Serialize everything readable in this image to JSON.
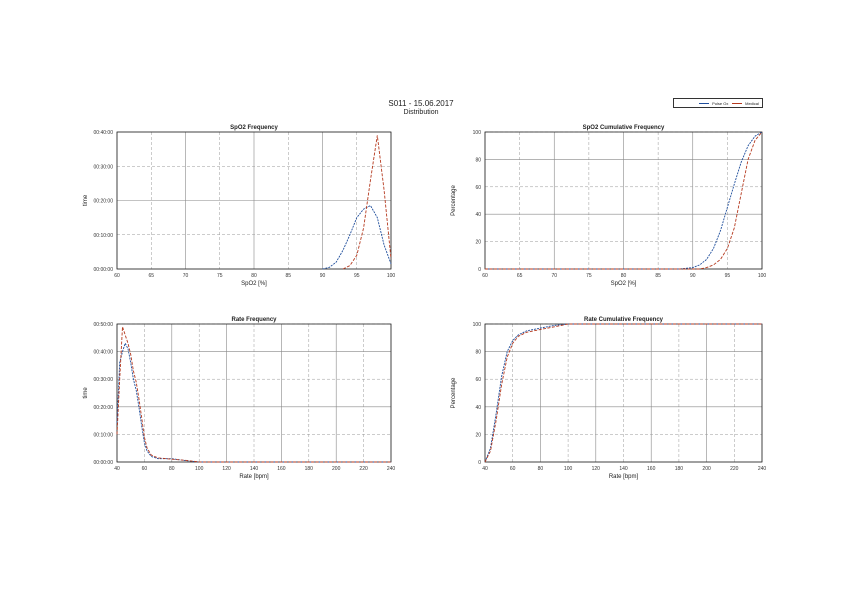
{
  "header": {
    "title": "S011 - 15.06.2017",
    "subtitle": "Distribution"
  },
  "legend": {
    "entries": [
      {
        "label": "Pulse Ox",
        "color": "#1f4e9c"
      },
      {
        "label": "Medical",
        "color": "#b5391e"
      }
    ]
  },
  "chart_data": [
    {
      "id": "spo2-frequency",
      "type": "line",
      "title": "SpO2 Frequency",
      "xlabel": "SpO2 [%]",
      "ylabel": "time",
      "xlim": [
        60,
        100
      ],
      "ylim": [
        0,
        4
      ],
      "xticks": [
        60,
        65,
        70,
        75,
        80,
        85,
        90,
        95,
        100
      ],
      "yticks": [
        0,
        1,
        2,
        3,
        4
      ],
      "ytick_labels": [
        "00:00:00",
        "00:10:00",
        "00:20:00",
        "00:30:00",
        "00:40:00"
      ],
      "series": [
        {
          "color": "#1f4e9c",
          "x": [
            90,
            91,
            92,
            93,
            94,
            95,
            96,
            97,
            98,
            99,
            100
          ],
          "y": [
            0,
            0.05,
            0.2,
            0.55,
            1.0,
            1.5,
            1.75,
            1.85,
            1.5,
            0.7,
            0.15
          ]
        },
        {
          "color": "#b5391e",
          "x": [
            93,
            94,
            95,
            96,
            97,
            98,
            99,
            100
          ],
          "y": [
            0,
            0.1,
            0.4,
            1.2,
            2.6,
            3.9,
            2.3,
            0.3
          ]
        }
      ]
    },
    {
      "id": "spo2-cumulative",
      "type": "line",
      "title": "SpO2 Cumulative Frequency",
      "xlabel": "SpO2 [%]",
      "ylabel": "Percentage",
      "xlim": [
        60,
        100
      ],
      "ylim": [
        0,
        100
      ],
      "xticks": [
        60,
        65,
        70,
        75,
        80,
        85,
        90,
        95,
        100
      ],
      "yticks": [
        0,
        20,
        40,
        60,
        80,
        100
      ],
      "series": [
        {
          "color": "#1f4e9c",
          "x": [
            60,
            88,
            90,
            91,
            92,
            93,
            94,
            95,
            96,
            97,
            98,
            99,
            100
          ],
          "y": [
            0,
            0,
            1,
            3,
            7,
            15,
            28,
            45,
            62,
            78,
            90,
            97,
            100
          ]
        },
        {
          "color": "#b5391e",
          "x": [
            60,
            91,
            92,
            93,
            94,
            95,
            96,
            97,
            98,
            99,
            100
          ],
          "y": [
            0,
            0,
            1,
            3,
            7,
            15,
            30,
            55,
            80,
            94,
            100
          ]
        }
      ]
    },
    {
      "id": "rate-frequency",
      "type": "line",
      "title": "Rate Frequency",
      "xlabel": "Rate [bpm]",
      "ylabel": "time",
      "xlim": [
        40,
        240
      ],
      "ylim": [
        0,
        5
      ],
      "xticks": [
        40,
        60,
        80,
        100,
        120,
        140,
        160,
        180,
        200,
        220,
        240
      ],
      "yticks": [
        0,
        1,
        2,
        3,
        4,
        5
      ],
      "ytick_labels": [
        "00:00:00",
        "00:10:00",
        "00:20:00",
        "00:30:00",
        "00:40:00",
        "00:50:00"
      ],
      "series": [
        {
          "color": "#1f4e9c",
          "x": [
            40,
            42,
            44,
            46,
            48,
            50,
            52,
            54,
            56,
            58,
            60,
            62,
            65,
            70,
            80,
            90,
            100,
            240
          ],
          "y": [
            1.4,
            3.6,
            4.0,
            4.3,
            4.1,
            3.6,
            3.0,
            2.6,
            2.0,
            1.3,
            0.7,
            0.4,
            0.2,
            0.12,
            0.12,
            0.05,
            0,
            0
          ]
        },
        {
          "color": "#b5391e",
          "x": [
            40,
            42,
            44,
            46,
            48,
            50,
            52,
            54,
            56,
            58,
            60,
            62,
            65,
            70,
            80,
            90,
            100,
            240
          ],
          "y": [
            1.0,
            3.0,
            4.9,
            4.6,
            4.3,
            3.9,
            3.3,
            2.9,
            2.3,
            1.6,
            0.9,
            0.5,
            0.25,
            0.15,
            0.1,
            0.06,
            0,
            0
          ]
        }
      ]
    },
    {
      "id": "rate-cumulative",
      "type": "line",
      "title": "Rate Cumulative Frequency",
      "xlabel": "Rate [bpm]",
      "ylabel": "Percentage",
      "xlim": [
        40,
        240
      ],
      "ylim": [
        0,
        100
      ],
      "xticks": [
        40,
        60,
        80,
        100,
        120,
        140,
        160,
        180,
        200,
        220,
        240
      ],
      "yticks": [
        0,
        20,
        40,
        60,
        80,
        100
      ],
      "series": [
        {
          "color": "#1f4e9c",
          "x": [
            40,
            44,
            48,
            52,
            56,
            60,
            64,
            70,
            80,
            90,
            100,
            240
          ],
          "y": [
            0,
            10,
            35,
            62,
            80,
            88,
            92,
            95,
            97,
            99,
            100,
            100
          ]
        },
        {
          "color": "#b5391e",
          "x": [
            40,
            44,
            48,
            52,
            56,
            60,
            64,
            70,
            80,
            90,
            100,
            240
          ],
          "y": [
            0,
            8,
            30,
            56,
            76,
            86,
            91,
            94,
            96,
            98,
            100,
            100
          ]
        }
      ]
    }
  ]
}
